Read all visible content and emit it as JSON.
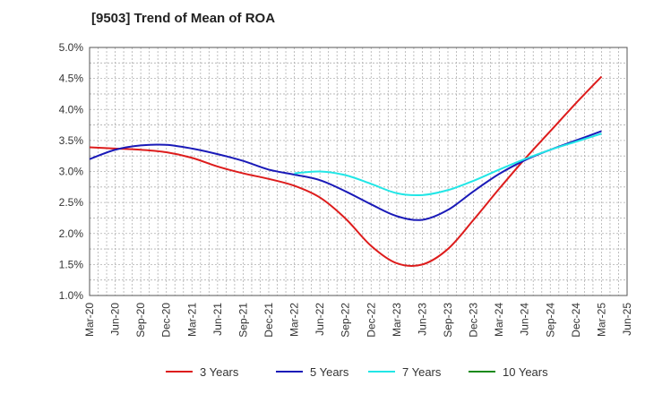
{
  "chart_data": {
    "type": "line",
    "title": "[9503]  Trend of Mean of ROA",
    "xlabel": "",
    "ylabel": "",
    "ylim": [
      1.0,
      5.0
    ],
    "y_ticks": [
      "1.0%",
      "1.5%",
      "2.0%",
      "2.5%",
      "3.0%",
      "3.5%",
      "4.0%",
      "4.5%",
      "5.0%"
    ],
    "y_tick_values": [
      1.0,
      1.5,
      2.0,
      2.5,
      3.0,
      3.5,
      4.0,
      4.5,
      5.0
    ],
    "categories": [
      "Mar-20",
      "Jun-20",
      "Sep-20",
      "Dec-20",
      "Mar-21",
      "Jun-21",
      "Sep-21",
      "Dec-21",
      "Mar-22",
      "Jun-22",
      "Sep-22",
      "Dec-22",
      "Mar-23",
      "Jun-23",
      "Sep-23",
      "Dec-23",
      "Mar-24",
      "Jun-24",
      "Sep-24",
      "Dec-24",
      "Mar-25",
      "Jun-25"
    ],
    "grid": true,
    "legend_position": "bottom",
    "series": [
      {
        "name": "3 Years",
        "color": "#dd1c1c",
        "values": [
          3.39,
          3.37,
          3.35,
          3.31,
          3.22,
          3.08,
          2.97,
          2.88,
          2.77,
          2.58,
          2.24,
          1.8,
          1.52,
          1.5,
          1.75,
          2.22,
          2.72,
          3.2,
          3.65,
          4.1,
          4.53,
          null
        ]
      },
      {
        "name": "5 Years",
        "color": "#1a1ab8",
        "values": [
          3.2,
          3.35,
          3.42,
          3.43,
          3.37,
          3.28,
          3.17,
          3.03,
          2.95,
          2.86,
          2.68,
          2.47,
          2.28,
          2.22,
          2.38,
          2.68,
          2.96,
          3.18,
          3.35,
          3.5,
          3.65,
          null
        ]
      },
      {
        "name": "7 Years",
        "color": "#22e6e6",
        "values": [
          null,
          null,
          null,
          null,
          null,
          null,
          null,
          null,
          2.97,
          3.0,
          2.94,
          2.8,
          2.65,
          2.62,
          2.7,
          2.85,
          3.03,
          3.2,
          3.35,
          3.48,
          3.61,
          null
        ]
      },
      {
        "name": "10 Years",
        "color": "#1a8a1a",
        "values": [
          null,
          null,
          null,
          null,
          null,
          null,
          null,
          null,
          null,
          null,
          null,
          null,
          null,
          null,
          null,
          null,
          null,
          null,
          null,
          null,
          null,
          null
        ]
      }
    ]
  }
}
